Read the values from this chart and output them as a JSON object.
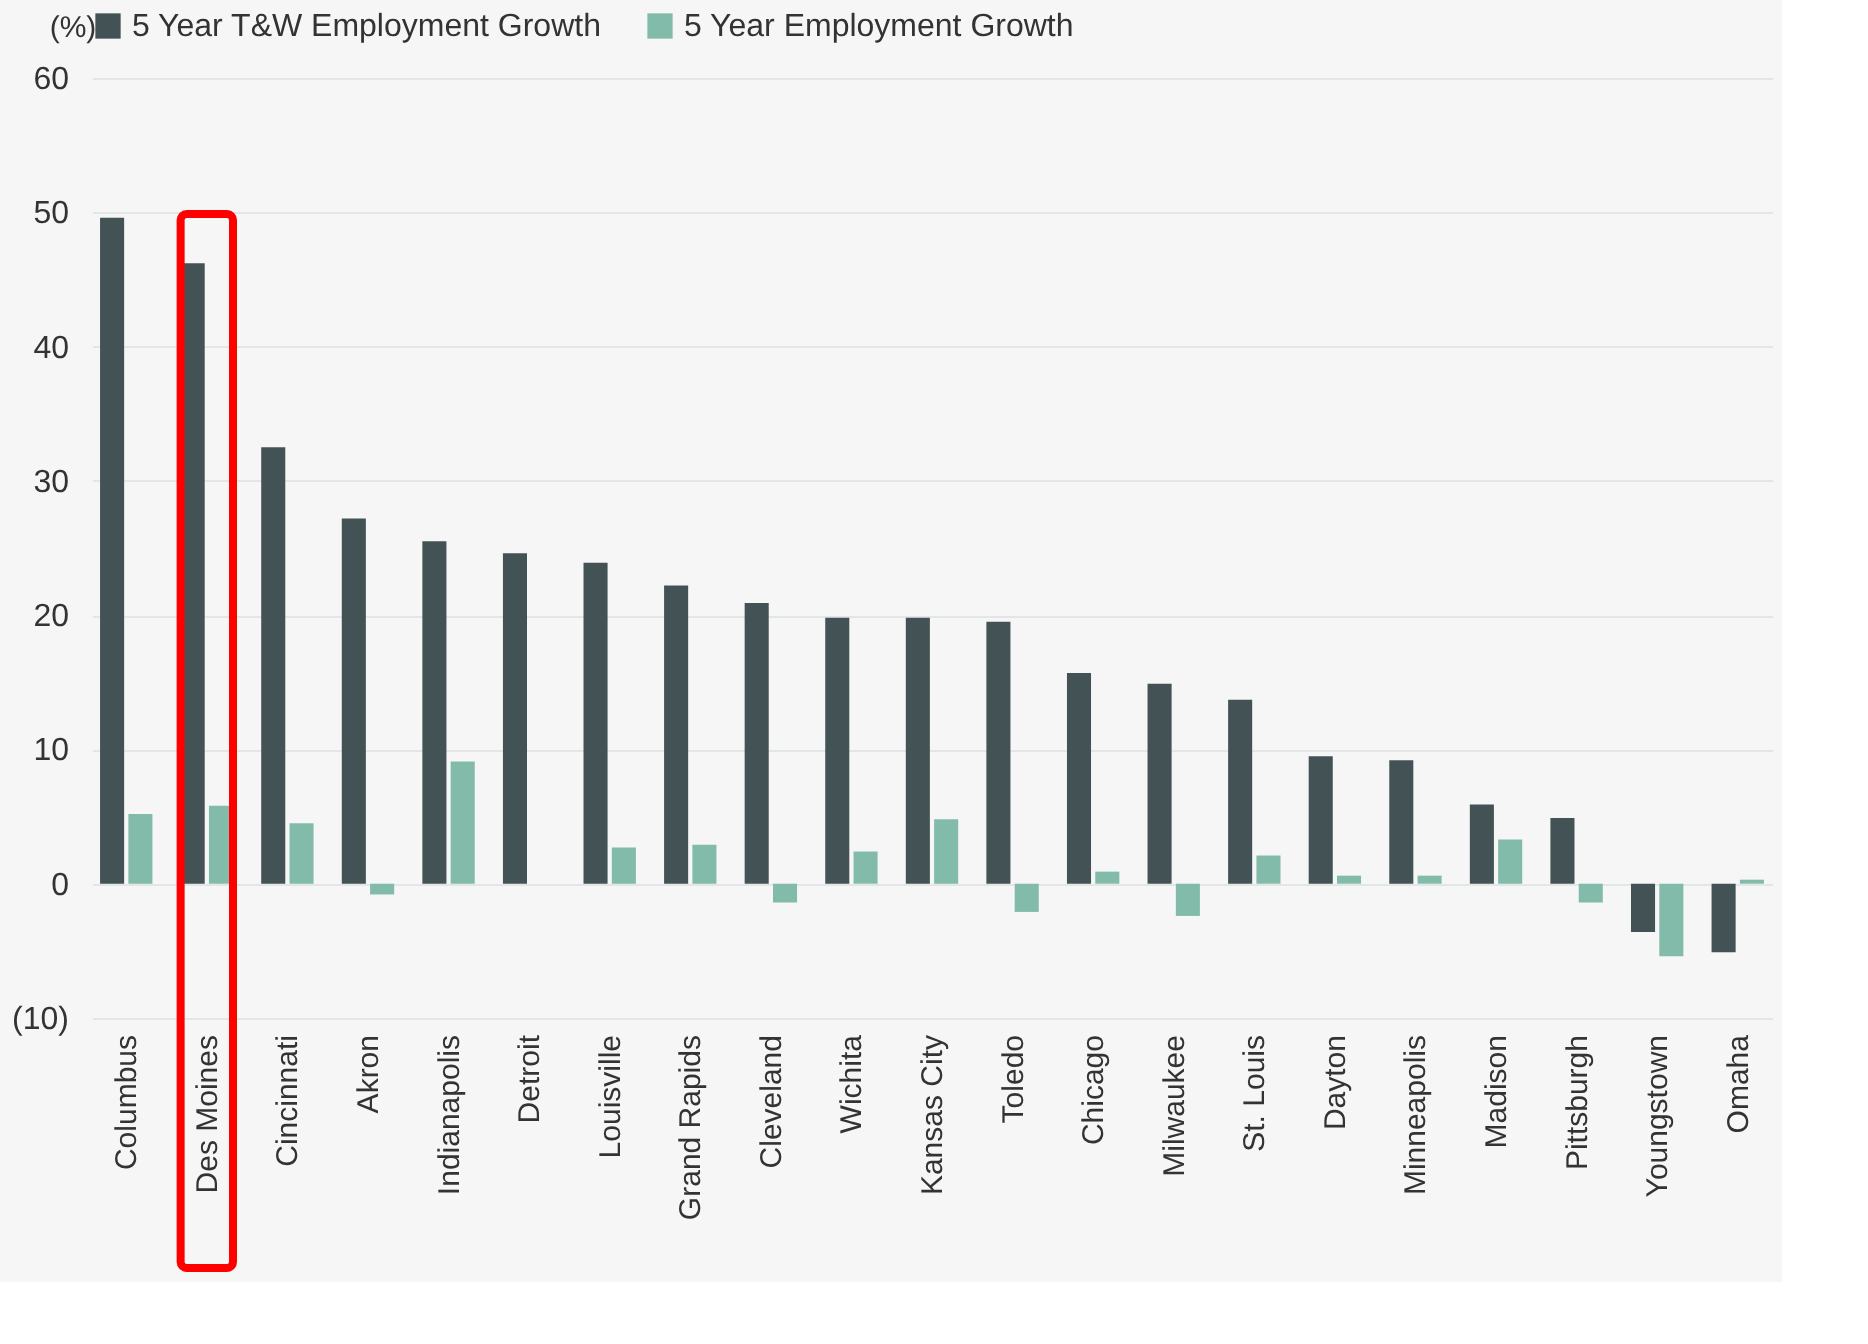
{
  "chart_data": {
    "type": "bar",
    "ylabel": "(%)",
    "categories": [
      "Columbus",
      "Des Moines",
      "Cincinnati",
      "Akron",
      "Indianapolis",
      "Detroit",
      "Louisville",
      "Grand Rapids",
      "Cleveland",
      "Wichita",
      "Kansas City",
      "Toledo",
      "Chicago",
      "Milwaukee",
      "St. Louis",
      "Dayton",
      "Minneapolis",
      "Madison",
      "Pittsburgh",
      "Youngstown",
      "Omaha"
    ],
    "series": [
      {
        "name": "5 Year T&W Employment Growth",
        "color": "#435254",
        "values": [
          49.6,
          46.2,
          32.5,
          27.2,
          25.5,
          24.6,
          23.9,
          22.2,
          20.9,
          19.8,
          19.8,
          19.5,
          15.7,
          14.9,
          13.7,
          9.5,
          9.2,
          5.9,
          4.9,
          -3.6,
          -5.1
        ]
      },
      {
        "name": "5 Year Employment Growth",
        "color": "#82bbaa",
        "values": [
          5.2,
          5.8,
          4.5,
          -0.8,
          9.1,
          0,
          2.7,
          2.9,
          -1.4,
          2.4,
          4.8,
          -2.1,
          0.9,
          -2.4,
          2.1,
          0.6,
          0.6,
          3.3,
          -1.4,
          -5.4,
          0.3
        ]
      }
    ],
    "ylim": [
      -10,
      60
    ],
    "yticks": [
      {
        "value": -10,
        "label": "(10)"
      },
      0,
      10,
      20,
      30,
      40,
      50,
      60
    ],
    "grid": "y",
    "legend": "top"
  }
}
